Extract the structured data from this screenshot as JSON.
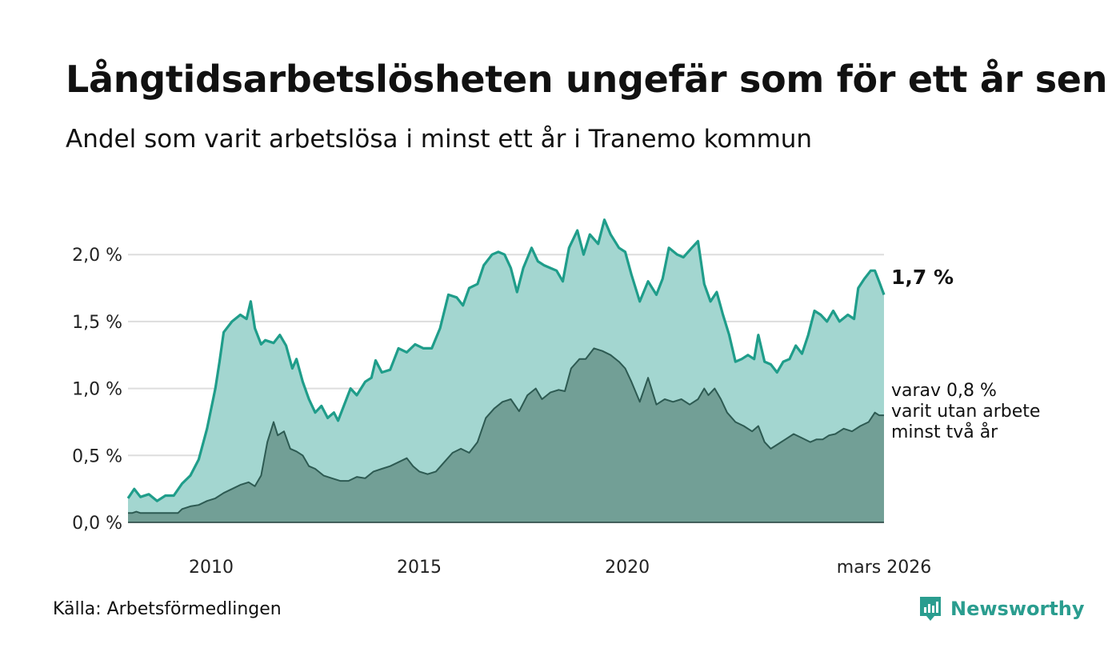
{
  "title": "Långtidsarbetslösheten ungefär som för ett år sen",
  "subtitle": "Andel som varit arbetslösa i minst ett år i Tranemo kommun",
  "source": "Källa: Arbetsförmedlingen",
  "brand": "Newsworthy",
  "colors": {
    "primary_line": "#1f9d8a",
    "primary_fill": "#a3d6d0",
    "secondary_line": "#2d5a52",
    "secondary_fill": "#729f96",
    "grid": "#dddddd",
    "brand": "#2a9d8f"
  },
  "chart_data": {
    "type": "area",
    "ylim": [
      0,
      2.3
    ],
    "y_ticks": [
      {
        "value": 0.0,
        "label": "0,0 %"
      },
      {
        "value": 0.5,
        "label": "0,5 %"
      },
      {
        "value": 1.0,
        "label": "1,0 %"
      },
      {
        "value": 1.5,
        "label": "1,5 %"
      },
      {
        "value": 2.0,
        "label": "2,0 %"
      }
    ],
    "x_ticks": [
      {
        "value": 2010,
        "label": "2010"
      },
      {
        "value": 2015,
        "label": "2015"
      },
      {
        "value": 2020,
        "label": "2020"
      },
      {
        "value": 2026.17,
        "label": "mars 2026"
      }
    ],
    "xlim": [
      2008.0,
      2026.17
    ],
    "series": [
      {
        "name": "Minst ett år",
        "end_label": "1,7 %",
        "points": [
          [
            2008.0,
            0.18
          ],
          [
            2008.15,
            0.25
          ],
          [
            2008.3,
            0.19
          ],
          [
            2008.5,
            0.21
          ],
          [
            2008.7,
            0.16
          ],
          [
            2008.9,
            0.2
          ],
          [
            2009.1,
            0.2
          ],
          [
            2009.3,
            0.29
          ],
          [
            2009.5,
            0.35
          ],
          [
            2009.7,
            0.47
          ],
          [
            2009.9,
            0.7
          ],
          [
            2010.0,
            0.85
          ],
          [
            2010.1,
            1.0
          ],
          [
            2010.2,
            1.2
          ],
          [
            2010.3,
            1.42
          ],
          [
            2010.5,
            1.5
          ],
          [
            2010.7,
            1.55
          ],
          [
            2010.85,
            1.52
          ],
          [
            2010.95,
            1.65
          ],
          [
            2011.05,
            1.45
          ],
          [
            2011.2,
            1.33
          ],
          [
            2011.3,
            1.36
          ],
          [
            2011.5,
            1.34
          ],
          [
            2011.65,
            1.4
          ],
          [
            2011.8,
            1.32
          ],
          [
            2011.95,
            1.15
          ],
          [
            2012.05,
            1.22
          ],
          [
            2012.2,
            1.05
          ],
          [
            2012.35,
            0.92
          ],
          [
            2012.5,
            0.82
          ],
          [
            2012.65,
            0.87
          ],
          [
            2012.8,
            0.78
          ],
          [
            2012.95,
            0.82
          ],
          [
            2013.05,
            0.76
          ],
          [
            2013.2,
            0.88
          ],
          [
            2013.35,
            1.0
          ],
          [
            2013.5,
            0.95
          ],
          [
            2013.7,
            1.05
          ],
          [
            2013.85,
            1.08
          ],
          [
            2013.95,
            1.21
          ],
          [
            2014.1,
            1.12
          ],
          [
            2014.3,
            1.14
          ],
          [
            2014.5,
            1.3
          ],
          [
            2014.7,
            1.27
          ],
          [
            2014.9,
            1.33
          ],
          [
            2015.1,
            1.3
          ],
          [
            2015.3,
            1.3
          ],
          [
            2015.5,
            1.45
          ],
          [
            2015.7,
            1.7
          ],
          [
            2015.9,
            1.68
          ],
          [
            2016.05,
            1.62
          ],
          [
            2016.2,
            1.75
          ],
          [
            2016.4,
            1.78
          ],
          [
            2016.55,
            1.92
          ],
          [
            2016.75,
            2.0
          ],
          [
            2016.9,
            2.02
          ],
          [
            2017.05,
            2.0
          ],
          [
            2017.2,
            1.9
          ],
          [
            2017.35,
            1.72
          ],
          [
            2017.5,
            1.9
          ],
          [
            2017.7,
            2.05
          ],
          [
            2017.85,
            1.95
          ],
          [
            2018.0,
            1.92
          ],
          [
            2018.15,
            1.9
          ],
          [
            2018.3,
            1.88
          ],
          [
            2018.45,
            1.8
          ],
          [
            2018.6,
            2.05
          ],
          [
            2018.8,
            2.18
          ],
          [
            2018.95,
            2.0
          ],
          [
            2019.1,
            2.15
          ],
          [
            2019.3,
            2.08
          ],
          [
            2019.45,
            2.26
          ],
          [
            2019.6,
            2.15
          ],
          [
            2019.8,
            2.05
          ],
          [
            2019.95,
            2.02
          ],
          [
            2020.1,
            1.85
          ],
          [
            2020.3,
            1.65
          ],
          [
            2020.5,
            1.8
          ],
          [
            2020.7,
            1.7
          ],
          [
            2020.85,
            1.82
          ],
          [
            2021.0,
            2.05
          ],
          [
            2021.2,
            2.0
          ],
          [
            2021.35,
            1.98
          ],
          [
            2021.55,
            2.05
          ],
          [
            2021.7,
            2.1
          ],
          [
            2021.85,
            1.78
          ],
          [
            2022.0,
            1.65
          ],
          [
            2022.15,
            1.72
          ],
          [
            2022.3,
            1.55
          ],
          [
            2022.45,
            1.4
          ],
          [
            2022.6,
            1.2
          ],
          [
            2022.75,
            1.22
          ],
          [
            2022.9,
            1.25
          ],
          [
            2023.05,
            1.22
          ],
          [
            2023.15,
            1.4
          ],
          [
            2023.3,
            1.2
          ],
          [
            2023.45,
            1.18
          ],
          [
            2023.6,
            1.12
          ],
          [
            2023.75,
            1.2
          ],
          [
            2023.9,
            1.22
          ],
          [
            2024.05,
            1.32
          ],
          [
            2024.2,
            1.26
          ],
          [
            2024.35,
            1.4
          ],
          [
            2024.5,
            1.58
          ],
          [
            2024.65,
            1.55
          ],
          [
            2024.8,
            1.5
          ],
          [
            2024.95,
            1.58
          ],
          [
            2025.1,
            1.5
          ],
          [
            2025.3,
            1.55
          ],
          [
            2025.45,
            1.52
          ],
          [
            2025.55,
            1.75
          ],
          [
            2025.7,
            1.82
          ],
          [
            2025.85,
            1.88
          ],
          [
            2025.95,
            1.88
          ],
          [
            2026.05,
            1.8
          ],
          [
            2026.17,
            1.7
          ]
        ]
      },
      {
        "name": "Minst två år",
        "end_label_lines": [
          "varav 0,8 %",
          "varit utan arbete",
          "minst två år"
        ],
        "points": [
          [
            2008.0,
            0.07
          ],
          [
            2008.1,
            0.07
          ],
          [
            2008.2,
            0.08
          ],
          [
            2008.3,
            0.07
          ],
          [
            2008.6,
            0.07
          ],
          [
            2008.9,
            0.07
          ],
          [
            2009.2,
            0.07
          ],
          [
            2009.3,
            0.1
          ],
          [
            2009.5,
            0.12
          ],
          [
            2009.7,
            0.13
          ],
          [
            2009.9,
            0.16
          ],
          [
            2010.1,
            0.18
          ],
          [
            2010.3,
            0.22
          ],
          [
            2010.5,
            0.25
          ],
          [
            2010.7,
            0.28
          ],
          [
            2010.9,
            0.3
          ],
          [
            2011.05,
            0.27
          ],
          [
            2011.2,
            0.35
          ],
          [
            2011.35,
            0.6
          ],
          [
            2011.5,
            0.75
          ],
          [
            2011.6,
            0.65
          ],
          [
            2011.75,
            0.68
          ],
          [
            2011.9,
            0.55
          ],
          [
            2012.05,
            0.53
          ],
          [
            2012.2,
            0.5
          ],
          [
            2012.35,
            0.42
          ],
          [
            2012.5,
            0.4
          ],
          [
            2012.7,
            0.35
          ],
          [
            2012.9,
            0.33
          ],
          [
            2013.1,
            0.31
          ],
          [
            2013.3,
            0.31
          ],
          [
            2013.5,
            0.34
          ],
          [
            2013.7,
            0.33
          ],
          [
            2013.9,
            0.38
          ],
          [
            2014.1,
            0.4
          ],
          [
            2014.3,
            0.42
          ],
          [
            2014.5,
            0.45
          ],
          [
            2014.7,
            0.48
          ],
          [
            2014.85,
            0.42
          ],
          [
            2015.0,
            0.38
          ],
          [
            2015.2,
            0.36
          ],
          [
            2015.4,
            0.38
          ],
          [
            2015.6,
            0.45
          ],
          [
            2015.8,
            0.52
          ],
          [
            2016.0,
            0.55
          ],
          [
            2016.2,
            0.52
          ],
          [
            2016.4,
            0.6
          ],
          [
            2016.6,
            0.78
          ],
          [
            2016.8,
            0.85
          ],
          [
            2017.0,
            0.9
          ],
          [
            2017.2,
            0.92
          ],
          [
            2017.4,
            0.83
          ],
          [
            2017.6,
            0.95
          ],
          [
            2017.8,
            1.0
          ],
          [
            2017.95,
            0.92
          ],
          [
            2018.15,
            0.97
          ],
          [
            2018.35,
            0.99
          ],
          [
            2018.5,
            0.98
          ],
          [
            2018.65,
            1.15
          ],
          [
            2018.85,
            1.22
          ],
          [
            2019.0,
            1.22
          ],
          [
            2019.2,
            1.3
          ],
          [
            2019.4,
            1.28
          ],
          [
            2019.6,
            1.25
          ],
          [
            2019.8,
            1.2
          ],
          [
            2019.95,
            1.15
          ],
          [
            2020.1,
            1.05
          ],
          [
            2020.3,
            0.9
          ],
          [
            2020.5,
            1.08
          ],
          [
            2020.7,
            0.88
          ],
          [
            2020.9,
            0.92
          ],
          [
            2021.1,
            0.9
          ],
          [
            2021.3,
            0.92
          ],
          [
            2021.5,
            0.88
          ],
          [
            2021.7,
            0.92
          ],
          [
            2021.85,
            1.0
          ],
          [
            2021.95,
            0.95
          ],
          [
            2022.1,
            1.0
          ],
          [
            2022.25,
            0.92
          ],
          [
            2022.4,
            0.82
          ],
          [
            2022.6,
            0.75
          ],
          [
            2022.8,
            0.72
          ],
          [
            2023.0,
            0.68
          ],
          [
            2023.15,
            0.72
          ],
          [
            2023.3,
            0.6
          ],
          [
            2023.45,
            0.55
          ],
          [
            2023.6,
            0.58
          ],
          [
            2023.8,
            0.62
          ],
          [
            2024.0,
            0.66
          ],
          [
            2024.2,
            0.63
          ],
          [
            2024.4,
            0.6
          ],
          [
            2024.55,
            0.62
          ],
          [
            2024.7,
            0.62
          ],
          [
            2024.85,
            0.65
          ],
          [
            2025.0,
            0.66
          ],
          [
            2025.2,
            0.7
          ],
          [
            2025.4,
            0.68
          ],
          [
            2025.6,
            0.72
          ],
          [
            2025.8,
            0.75
          ],
          [
            2025.95,
            0.82
          ],
          [
            2026.05,
            0.8
          ],
          [
            2026.17,
            0.8
          ]
        ]
      }
    ]
  }
}
